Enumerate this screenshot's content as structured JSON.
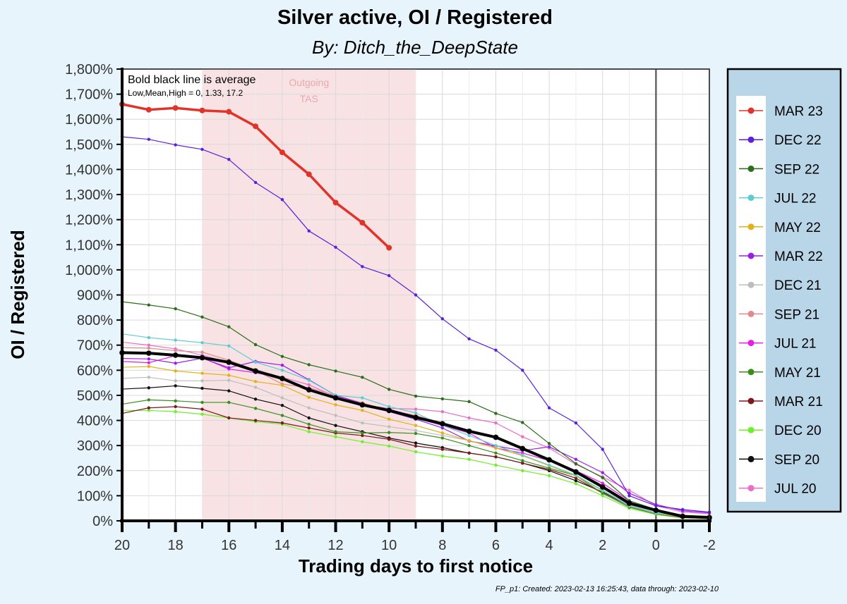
{
  "chart_data": {
    "type": "line",
    "title": "Silver active, OI / Registered",
    "subtitle": "By:  Ditch_the_DeepState",
    "xlabel": "Trading days to first notice",
    "ylabel": "OI  / Registered",
    "xlim": [
      20,
      -2
    ],
    "ylim": [
      0,
      1800
    ],
    "x_ticks": [
      20,
      18,
      16,
      14,
      12,
      10,
      8,
      6,
      4,
      2,
      0,
      -2
    ],
    "y_ticks": [
      0,
      100,
      200,
      300,
      400,
      500,
      600,
      700,
      800,
      900,
      1000,
      1100,
      1200,
      1300,
      1400,
      1500,
      1600,
      1700,
      1800
    ],
    "y_tick_format": "percent",
    "grid": true,
    "legend_position": "right",
    "annotation_line1": "Bold black line is average",
    "annotation_line2": "Low,Mean,High = 0, 1.33, 17.2",
    "shaded_region": {
      "label_line1": "Outgoing",
      "label_line2": "TAS",
      "x_from": 17,
      "x_to": 9,
      "color": "#f8e2e3"
    },
    "vline_x": 0,
    "footer": "FP_p1: Created: 2023-02-13 16:25:43, data through: 2023-02-10",
    "average": {
      "x": [
        20,
        19,
        18,
        17,
        16,
        15,
        14,
        13,
        12,
        11,
        10,
        9,
        8,
        7,
        6,
        5,
        4,
        3,
        2,
        1,
        0,
        -1,
        -2
      ],
      "values": [
        670,
        668,
        660,
        650,
        632,
        597,
        567,
        522,
        490,
        462,
        440,
        412,
        387,
        357,
        333,
        288,
        243,
        195,
        135,
        70,
        42,
        18,
        13
      ],
      "color": "#000000"
    },
    "series": [
      {
        "name": "MAR 23",
        "color": "#e0342b",
        "width": 3.5,
        "x": [
          20,
          19,
          18,
          17,
          16,
          15,
          14,
          13,
          12,
          11,
          10
        ],
        "values": [
          1660,
          1638,
          1645,
          1635,
          1630,
          1572,
          1468,
          1381,
          1268,
          1188,
          1088
        ]
      },
      {
        "name": "DEC 22",
        "color": "#5b21d9",
        "width": 1.2,
        "x": [
          20,
          19,
          18,
          17,
          16,
          15,
          14,
          13,
          12,
          11,
          10,
          9,
          8,
          7,
          6,
          5,
          4,
          3,
          2,
          1,
          0,
          -1,
          -2
        ],
        "values": [
          1530,
          1520,
          1498,
          1480,
          1440,
          1348,
          1280,
          1155,
          1090,
          1013,
          977,
          900,
          805,
          725,
          680,
          600,
          450,
          390,
          285,
          100,
          60,
          45,
          35
        ]
      },
      {
        "name": "SEP 22",
        "color": "#2a6e1a",
        "width": 1.2,
        "x": [
          20,
          19,
          18,
          17,
          16,
          15,
          14,
          13,
          12,
          11,
          10,
          9,
          8,
          7,
          6,
          5,
          4,
          3,
          2,
          1,
          0,
          -1,
          -2
        ],
        "values": [
          873,
          860,
          845,
          812,
          773,
          702,
          655,
          622,
          597,
          572,
          524,
          497,
          486,
          475,
          428,
          392,
          308,
          228,
          172,
          80,
          45,
          22,
          18
        ]
      },
      {
        "name": "JUL 22",
        "color": "#5ecbd3",
        "width": 1.2,
        "x": [
          20,
          19,
          18,
          17,
          16,
          15,
          14,
          13,
          12,
          11,
          10,
          9,
          8,
          7,
          6,
          5,
          4,
          3,
          2,
          1,
          0,
          -1,
          -2
        ],
        "values": [
          745,
          730,
          720,
          710,
          697,
          632,
          600,
          560,
          500,
          490,
          455,
          430,
          380,
          340,
          300,
          262,
          222,
          182,
          122,
          62,
          32,
          18,
          12
        ]
      },
      {
        "name": "MAY 22",
        "color": "#e3b11a",
        "width": 1.2,
        "x": [
          20,
          19,
          18,
          17,
          16,
          15,
          14,
          13,
          12,
          11,
          10,
          9,
          8,
          7,
          6,
          5,
          4,
          3,
          2,
          1,
          0,
          -1,
          -2
        ],
        "values": [
          612,
          615,
          597,
          588,
          580,
          555,
          540,
          492,
          462,
          440,
          405,
          380,
          350,
          320,
          290,
          260,
          220,
          180,
          120,
          62,
          32,
          15,
          10
        ]
      },
      {
        "name": "MAR 22",
        "color": "#9b1ee6",
        "width": 1.2,
        "x": [
          20,
          19,
          18,
          17,
          16,
          15,
          14,
          13,
          12,
          11,
          10,
          9,
          8,
          7,
          6,
          5,
          4,
          3,
          2,
          1,
          0,
          -1,
          -2
        ],
        "values": [
          647,
          645,
          628,
          648,
          610,
          635,
          620,
          562,
          500,
          467,
          435,
          405,
          370,
          318,
          298,
          280,
          295,
          245,
          192,
          110,
          65,
          40,
          32
        ]
      },
      {
        "name": "DEC 21",
        "color": "#bdbdbd",
        "width": 1.2,
        "x": [
          20,
          19,
          18,
          17,
          16,
          15,
          14,
          13,
          12,
          11,
          10,
          9,
          8,
          7,
          6,
          5,
          4,
          3,
          2,
          1,
          0,
          -1,
          -2
        ],
        "values": [
          568,
          572,
          558,
          558,
          560,
          532,
          490,
          450,
          420,
          390,
          375,
          360,
          340,
          320,
          290,
          260,
          220,
          180,
          120,
          60,
          30,
          15,
          10
        ]
      },
      {
        "name": "SEP 21",
        "color": "#e08a8a",
        "width": 1.2,
        "x": [
          20,
          19,
          18,
          17,
          16,
          15,
          14,
          13,
          12,
          11,
          10,
          9,
          8,
          7,
          6,
          5,
          4,
          3,
          2,
          1,
          0,
          -1,
          -2
        ],
        "values": [
          690,
          688,
          678,
          672,
          640,
          600,
          545,
          530,
          500,
          470,
          440,
          420,
          390,
          360,
          330,
          290,
          245,
          200,
          140,
          75,
          40,
          20,
          14
        ]
      },
      {
        "name": "JUL 21",
        "color": "#e61ee6",
        "width": 1.2,
        "x": [
          20,
          19,
          18,
          17,
          16,
          15,
          14,
          13,
          12,
          11,
          10,
          9,
          8,
          7,
          6,
          5,
          4,
          3,
          2,
          1,
          0,
          -1,
          -2
        ],
        "values": [
          635,
          630,
          658,
          650,
          605,
          590,
          570,
          525,
          490,
          460,
          440,
          410,
          380,
          350,
          290,
          270,
          240,
          200,
          150,
          80,
          45,
          20,
          14
        ]
      },
      {
        "name": "MAY 21",
        "color": "#3a8e1e",
        "width": 1.2,
        "x": [
          20,
          19,
          18,
          17,
          16,
          15,
          14,
          13,
          12,
          11,
          10,
          9,
          8,
          7,
          6,
          5,
          4,
          3,
          2,
          1,
          0,
          -1,
          -2
        ],
        "values": [
          465,
          482,
          478,
          472,
          472,
          448,
          420,
          385,
          355,
          350,
          352,
          348,
          330,
          300,
          270,
          240,
          210,
          180,
          110,
          55,
          28,
          14,
          10
        ]
      },
      {
        "name": "MAR 21",
        "color": "#7a1a1a",
        "width": 1.2,
        "x": [
          20,
          19,
          18,
          17,
          16,
          15,
          14,
          13,
          12,
          11,
          10,
          9,
          8,
          7,
          6,
          5,
          4,
          3,
          2,
          1,
          0,
          -1,
          -2
        ],
        "values": [
          428,
          450,
          455,
          445,
          410,
          400,
          390,
          370,
          350,
          340,
          325,
          298,
          285,
          270,
          255,
          230,
          205,
          170,
          110,
          55,
          28,
          13,
          10
        ]
      },
      {
        "name": "DEC 20",
        "color": "#6ef02a",
        "width": 1.2,
        "x": [
          20,
          19,
          18,
          17,
          16,
          15,
          14,
          13,
          12,
          11,
          10,
          9,
          8,
          7,
          6,
          5,
          4,
          3,
          2,
          1,
          0,
          -1,
          -2
        ],
        "values": [
          440,
          440,
          435,
          425,
          410,
          395,
          385,
          355,
          335,
          315,
          298,
          275,
          258,
          245,
          222,
          200,
          180,
          148,
          100,
          50,
          25,
          12,
          8
        ]
      },
      {
        "name": "SEP 20",
        "color": "#111111",
        "width": 1.2,
        "x": [
          20,
          19,
          18,
          17,
          16,
          15,
          14,
          13,
          12,
          11,
          10,
          9,
          8,
          7,
          6,
          5,
          4,
          3,
          2,
          1,
          0,
          -1,
          -2
        ],
        "values": [
          525,
          530,
          538,
          528,
          518,
          485,
          460,
          410,
          380,
          355,
          330,
          310,
          292,
          270,
          255,
          230,
          200,
          160,
          115,
          60,
          30,
          15,
          10
        ]
      },
      {
        "name": "JUL 20",
        "color": "#e86fc9",
        "width": 1.2,
        "x": [
          20,
          19,
          18,
          17,
          16,
          15,
          14,
          13,
          12,
          11,
          10,
          9,
          8,
          7,
          6,
          5,
          4,
          3,
          2,
          1,
          0,
          -1,
          -2
        ],
        "values": [
          712,
          700,
          685,
          660,
          632,
          602,
          572,
          542,
          495,
          462,
          448,
          445,
          435,
          410,
          390,
          335,
          290,
          225,
          175,
          122,
          60,
          35,
          28
        ]
      }
    ]
  }
}
